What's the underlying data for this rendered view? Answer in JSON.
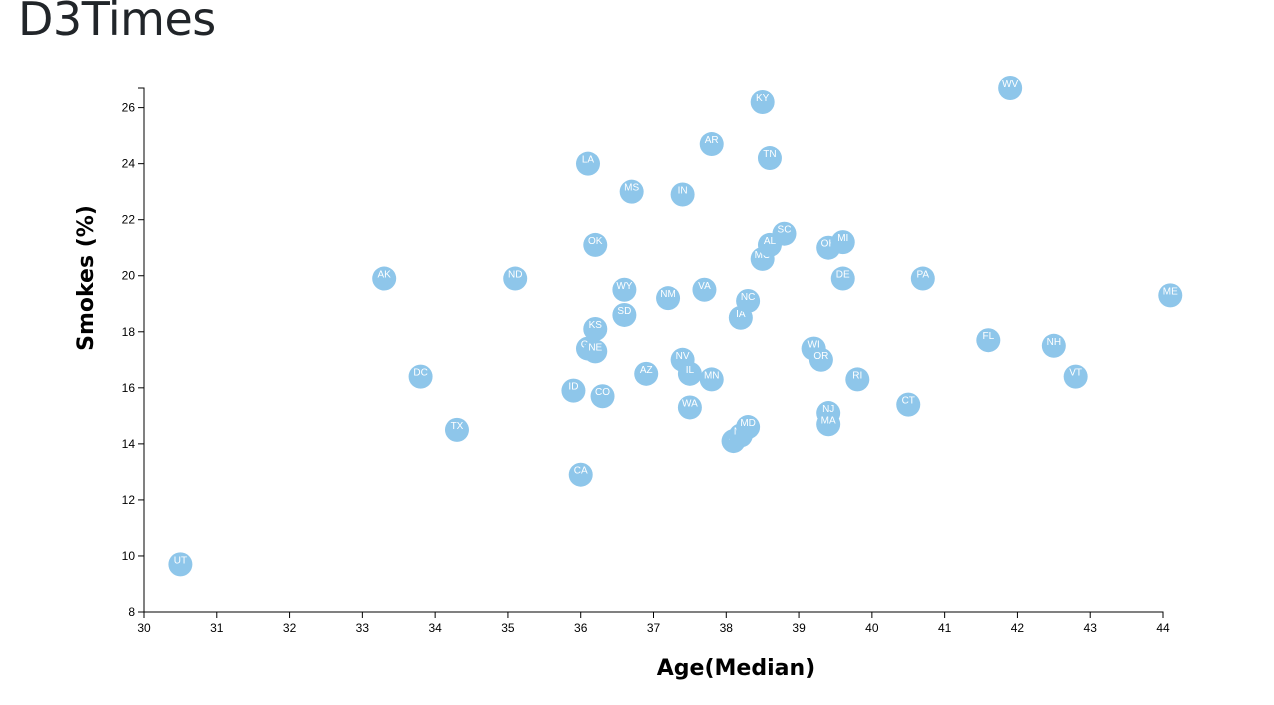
{
  "page": {
    "title": "D3Times"
  },
  "chart_data": {
    "type": "scatter",
    "xlabel": "Age(Median)",
    "ylabel": "Smokes (%)",
    "xlim": [
      30,
      44
    ],
    "ylim": [
      8,
      26.7
    ],
    "xticks": [
      30,
      31,
      32,
      33,
      34,
      35,
      36,
      37,
      38,
      39,
      40,
      41,
      42,
      43,
      44
    ],
    "yticks": [
      8,
      10,
      12,
      14,
      16,
      18,
      20,
      22,
      24,
      26
    ],
    "point_color": "#8ec6ea",
    "label_color": "#ffffff",
    "grid": false,
    "points": [
      {
        "abbr": "UT",
        "x": 30.5,
        "y": 9.7
      },
      {
        "abbr": "AK",
        "x": 33.3,
        "y": 19.9
      },
      {
        "abbr": "DC",
        "x": 33.8,
        "y": 16.4
      },
      {
        "abbr": "TX",
        "x": 34.3,
        "y": 14.5
      },
      {
        "abbr": "ND",
        "x": 35.1,
        "y": 19.9
      },
      {
        "abbr": "ID",
        "x": 35.9,
        "y": 15.9
      },
      {
        "abbr": "CA",
        "x": 36.0,
        "y": 12.9
      },
      {
        "abbr": "LA",
        "x": 36.1,
        "y": 24.0
      },
      {
        "abbr": "GA",
        "x": 36.1,
        "y": 17.4
      },
      {
        "abbr": "OK",
        "x": 36.2,
        "y": 21.1
      },
      {
        "abbr": "KS",
        "x": 36.2,
        "y": 18.1
      },
      {
        "abbr": "NE",
        "x": 36.2,
        "y": 17.3
      },
      {
        "abbr": "CO",
        "x": 36.3,
        "y": 15.7
      },
      {
        "abbr": "WY",
        "x": 36.6,
        "y": 19.5
      },
      {
        "abbr": "SD",
        "x": 36.6,
        "y": 18.6
      },
      {
        "abbr": "MS",
        "x": 36.7,
        "y": 23.0
      },
      {
        "abbr": "AZ",
        "x": 36.9,
        "y": 16.5
      },
      {
        "abbr": "NM",
        "x": 37.2,
        "y": 19.2
      },
      {
        "abbr": "IN",
        "x": 37.4,
        "y": 22.9
      },
      {
        "abbr": "NV",
        "x": 37.4,
        "y": 17.0
      },
      {
        "abbr": "IL",
        "x": 37.5,
        "y": 16.5
      },
      {
        "abbr": "WA",
        "x": 37.5,
        "y": 15.3
      },
      {
        "abbr": "VA",
        "x": 37.7,
        "y": 19.5
      },
      {
        "abbr": "AR",
        "x": 37.8,
        "y": 24.7
      },
      {
        "abbr": "MN",
        "x": 37.8,
        "y": 16.3
      },
      {
        "abbr": "HI",
        "x": 38.1,
        "y": 14.1
      },
      {
        "abbr": "NY",
        "x": 38.2,
        "y": 14.3
      },
      {
        "abbr": "IA",
        "x": 38.2,
        "y": 18.5
      },
      {
        "abbr": "MD",
        "x": 38.3,
        "y": 14.6
      },
      {
        "abbr": "NC",
        "x": 38.3,
        "y": 19.1
      },
      {
        "abbr": "KY",
        "x": 38.5,
        "y": 26.2
      },
      {
        "abbr": "MO",
        "x": 38.5,
        "y": 20.6
      },
      {
        "abbr": "TN",
        "x": 38.6,
        "y": 24.2
      },
      {
        "abbr": "AL",
        "x": 38.6,
        "y": 21.1
      },
      {
        "abbr": "SC",
        "x": 38.8,
        "y": 21.5
      },
      {
        "abbr": "WI",
        "x": 39.2,
        "y": 17.4
      },
      {
        "abbr": "OR",
        "x": 39.3,
        "y": 17.0
      },
      {
        "abbr": "OH",
        "x": 39.4,
        "y": 21.0
      },
      {
        "abbr": "NJ",
        "x": 39.4,
        "y": 15.1
      },
      {
        "abbr": "MA",
        "x": 39.4,
        "y": 14.7
      },
      {
        "abbr": "MI",
        "x": 39.6,
        "y": 21.2
      },
      {
        "abbr": "DE",
        "x": 39.6,
        "y": 19.9
      },
      {
        "abbr": "RI",
        "x": 39.8,
        "y": 16.3
      },
      {
        "abbr": "CT",
        "x": 40.5,
        "y": 15.4
      },
      {
        "abbr": "PA",
        "x": 40.7,
        "y": 19.9
      },
      {
        "abbr": "FL",
        "x": 41.6,
        "y": 17.7
      },
      {
        "abbr": "WV",
        "x": 41.9,
        "y": 26.7
      },
      {
        "abbr": "NH",
        "x": 42.5,
        "y": 17.5
      },
      {
        "abbr": "VT",
        "x": 42.8,
        "y": 16.4
      },
      {
        "abbr": "ME",
        "x": 44.1,
        "y": 19.3
      }
    ]
  }
}
